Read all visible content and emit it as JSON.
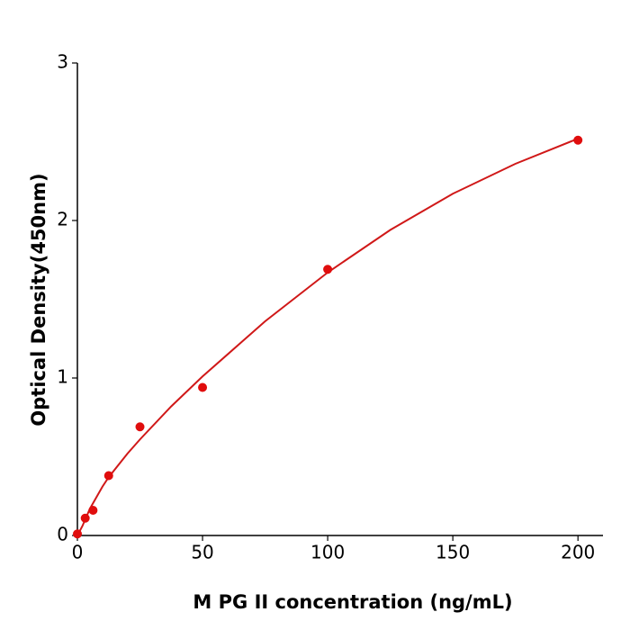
{
  "chart_data": {
    "type": "scatter",
    "x_label": "M  PG II concentration (ng/mL)",
    "y_label": "Optical Density(450nm)",
    "xlim": [
      0,
      210
    ],
    "xticks": [
      0,
      50,
      100,
      150,
      200
    ],
    "ylim": [
      0,
      3
    ],
    "yticks": [
      0,
      1,
      2,
      3
    ],
    "grid": false,
    "series": [
      {
        "type": "scatter",
        "color": "#e00d0d",
        "x": [
          0,
          3.125,
          6.25,
          12.5,
          25,
          50,
          100,
          200
        ],
        "values": [
          0.01,
          0.11,
          0.16,
          0.38,
          0.69,
          0.94,
          1.69,
          2.51
        ]
      },
      {
        "type": "line",
        "color": "#d01818",
        "x": [
          0,
          2,
          5,
          10,
          12.5,
          20,
          25,
          37.5,
          50,
          75,
          100,
          125,
          150,
          175,
          200
        ],
        "values": [
          0,
          0.06,
          0.17,
          0.31,
          0.37,
          0.52,
          0.61,
          0.82,
          1.01,
          1.36,
          1.67,
          1.94,
          2.17,
          2.36,
          2.52
        ]
      }
    ]
  }
}
